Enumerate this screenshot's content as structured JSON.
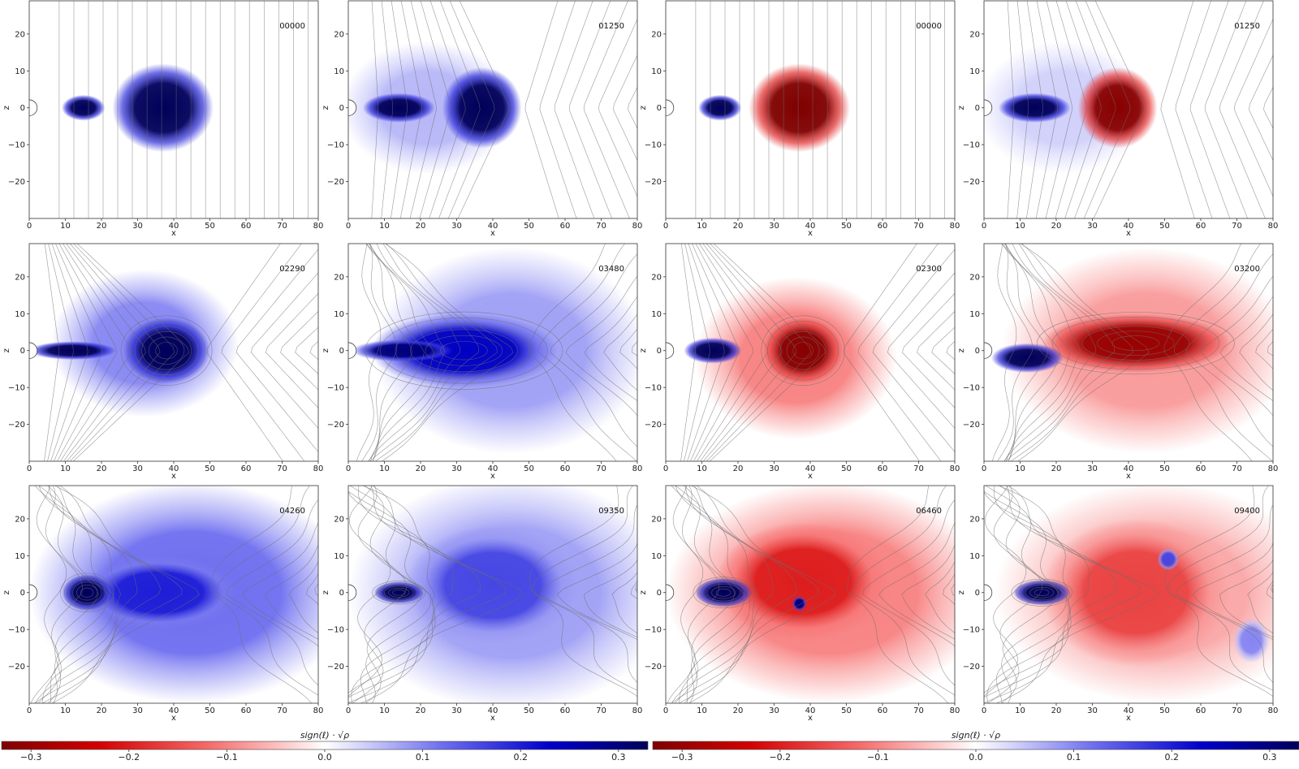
{
  "chart_data": {
    "type": "heatmap",
    "xlabel": "x",
    "ylabel": "z",
    "xlim": [
      0,
      80
    ],
    "ylim": [
      -30,
      29
    ],
    "xticks": [
      0,
      10,
      20,
      30,
      40,
      50,
      60,
      70,
      80
    ],
    "yticks": [
      20,
      10,
      0,
      -10,
      -20
    ],
    "colorbar": {
      "label": "sign(ℓ) · √ρ",
      "ticks": [
        -0.3,
        -0.2,
        -0.1,
        0.0,
        0.1,
        0.2,
        0.3
      ],
      "tick_labels": [
        "−0.3",
        "−0.2",
        "−0.1",
        "0.0",
        "0.1",
        "0.2",
        "0.3"
      ],
      "range": [
        -0.33,
        0.33
      ]
    },
    "colors": {
      "positive": "#00005a",
      "negative": "#7f0000",
      "zero": "#ffffff",
      "contours": "#6e6e6e"
    },
    "panels": [
      {
        "time": "00000",
        "row": 0,
        "col": 0,
        "scheme": "blue",
        "stage": 0,
        "blobs": [
          {
            "x": 15,
            "z": 0,
            "rx": 6,
            "rz": 3.5,
            "sign": 1,
            "amp": 0.34
          },
          {
            "x": 37,
            "z": 0,
            "rx": 14,
            "rz": 12,
            "sign": 1,
            "amp": 0.33
          }
        ]
      },
      {
        "time": "01250",
        "row": 0,
        "col": 1,
        "scheme": "blue",
        "stage": 1,
        "blobs": [
          {
            "x": 14,
            "z": 0,
            "rx": 10,
            "rz": 4,
            "sign": 1,
            "amp": 0.34
          },
          {
            "x": 37,
            "z": 0,
            "rx": 11,
            "rz": 11,
            "sign": 1,
            "amp": 0.34
          },
          {
            "x": 22,
            "z": 0,
            "rx": 24,
            "rz": 18,
            "sign": 1,
            "amp": 0.06
          }
        ]
      },
      {
        "time": "00000",
        "row": 0,
        "col": 2,
        "scheme": "red",
        "stage": 0,
        "blobs": [
          {
            "x": 15,
            "z": 0,
            "rx": 6,
            "rz": 3.5,
            "sign": 1,
            "amp": 0.34
          },
          {
            "x": 37,
            "z": 0,
            "rx": 14,
            "rz": 12,
            "sign": -1,
            "amp": 0.33
          }
        ]
      },
      {
        "time": "01250",
        "row": 0,
        "col": 3,
        "scheme": "red",
        "stage": 1,
        "blobs": [
          {
            "x": 14,
            "z": 0,
            "rx": 10,
            "rz": 4,
            "sign": 1,
            "amp": 0.34
          },
          {
            "x": 37,
            "z": 0,
            "rx": 11,
            "rz": 11,
            "sign": -1,
            "amp": 0.32
          },
          {
            "x": 22,
            "z": 0,
            "rx": 24,
            "rz": 18,
            "sign": 1,
            "amp": 0.04
          }
        ]
      },
      {
        "time": "02290",
        "row": 1,
        "col": 0,
        "scheme": "blue",
        "stage": 2,
        "blobs": [
          {
            "x": 38,
            "z": 0,
            "rx": 12,
            "rz": 9,
            "sign": 1,
            "amp": 0.34
          },
          {
            "x": 12,
            "z": 0,
            "rx": 12,
            "rz": 2.5,
            "sign": 1,
            "amp": 0.34
          },
          {
            "x": 32,
            "z": 2,
            "rx": 26,
            "rz": 20,
            "sign": 1,
            "amp": 0.1
          }
        ]
      },
      {
        "time": "03480",
        "row": 1,
        "col": 1,
        "scheme": "blue",
        "stage": 3,
        "blobs": [
          {
            "x": 32,
            "z": 0,
            "rx": 26,
            "rz": 10,
            "sign": 1,
            "amp": 0.24
          },
          {
            "x": 15,
            "z": 0,
            "rx": 14,
            "rz": 3,
            "sign": 1,
            "amp": 0.3
          },
          {
            "x": 45,
            "z": 0,
            "rx": 38,
            "rz": 28,
            "sign": 1,
            "amp": 0.08
          }
        ]
      },
      {
        "time": "02300",
        "row": 1,
        "col": 2,
        "scheme": "red",
        "stage": 2,
        "blobs": [
          {
            "x": 38,
            "z": 0,
            "rx": 11,
            "rz": 9,
            "sign": -1,
            "amp": 0.32
          },
          {
            "x": 13,
            "z": 0,
            "rx": 8,
            "rz": 3.5,
            "sign": 1,
            "amp": 0.34
          },
          {
            "x": 36,
            "z": -2,
            "rx": 28,
            "rz": 22,
            "sign": -1,
            "amp": 0.1
          }
        ]
      },
      {
        "time": "03200",
        "row": 1,
        "col": 3,
        "scheme": "red",
        "stage": 3,
        "blobs": [
          {
            "x": 42,
            "z": 2,
            "rx": 26,
            "rz": 8,
            "sign": -1,
            "amp": 0.3
          },
          {
            "x": 12,
            "z": -2,
            "rx": 10,
            "rz": 4,
            "sign": 1,
            "amp": 0.34
          },
          {
            "x": 45,
            "z": 0,
            "rx": 40,
            "rz": 28,
            "sign": -1,
            "amp": 0.08
          }
        ]
      },
      {
        "time": "04260",
        "row": 2,
        "col": 0,
        "scheme": "blue",
        "stage": 4,
        "blobs": [
          {
            "x": 16,
            "z": 0,
            "rx": 7,
            "rz": 5,
            "sign": 1,
            "amp": 0.34
          },
          {
            "x": 36,
            "z": 0,
            "rx": 22,
            "rz": 10,
            "sign": 1,
            "amp": 0.2
          },
          {
            "x": 45,
            "z": 0,
            "rx": 45,
            "rz": 30,
            "sign": 1,
            "amp": 0.12
          }
        ]
      },
      {
        "time": "09350",
        "row": 2,
        "col": 1,
        "scheme": "blue",
        "stage": 5,
        "blobs": [
          {
            "x": 14,
            "z": 0,
            "rx": 7,
            "rz": 3,
            "sign": 1,
            "amp": 0.34
          },
          {
            "x": 40,
            "z": 2,
            "rx": 24,
            "rz": 16,
            "sign": 1,
            "amp": 0.16
          },
          {
            "x": 45,
            "z": 0,
            "rx": 45,
            "rz": 32,
            "sign": 1,
            "amp": 0.08
          }
        ]
      },
      {
        "time": "06460",
        "row": 2,
        "col": 2,
        "scheme": "red",
        "stage": 4,
        "blobs": [
          {
            "x": 16,
            "z": 0,
            "rx": 8,
            "rz": 4,
            "sign": 1,
            "amp": 0.34
          },
          {
            "x": 38,
            "z": 3,
            "rx": 24,
            "rz": 16,
            "sign": -1,
            "amp": 0.2
          },
          {
            "x": 37,
            "z": -3,
            "rx": 2,
            "rz": 2,
            "sign": 1,
            "amp": 0.3
          },
          {
            "x": 45,
            "z": 0,
            "rx": 45,
            "rz": 30,
            "sign": -1,
            "amp": 0.1
          }
        ]
      },
      {
        "time": "09400",
        "row": 2,
        "col": 3,
        "scheme": "red",
        "stage": 5,
        "blobs": [
          {
            "x": 16,
            "z": 0,
            "rx": 8,
            "rz": 3.5,
            "sign": 1,
            "amp": 0.34
          },
          {
            "x": 42,
            "z": 0,
            "rx": 26,
            "rz": 20,
            "sign": -1,
            "amp": 0.16
          },
          {
            "x": 51,
            "z": 9,
            "rx": 3,
            "rz": 3,
            "sign": 1,
            "amp": 0.16
          },
          {
            "x": 74,
            "z": -13,
            "rx": 5,
            "rz": 6,
            "sign": 1,
            "amp": 0.1
          },
          {
            "x": 48,
            "z": 0,
            "rx": 45,
            "rz": 30,
            "sign": -1,
            "amp": 0.07
          }
        ]
      }
    ]
  }
}
